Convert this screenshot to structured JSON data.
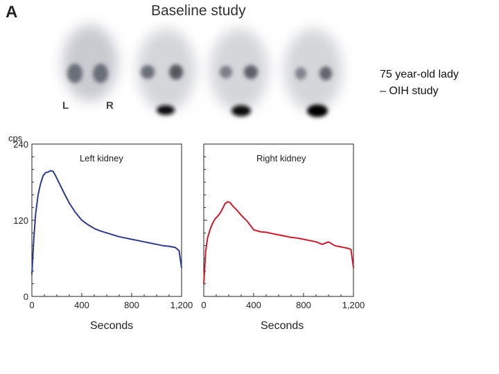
{
  "panel_label": "A",
  "title": "Baseline study",
  "scan_labels": {
    "left": "L",
    "right": "R"
  },
  "side_note": {
    "line1": "75 year-old lady",
    "line2": "– OIH study"
  },
  "colors": {
    "left_curve": "#2b3a8c",
    "right_curve": "#d0182a"
  },
  "chart_data": [
    {
      "type": "line",
      "title": "Left kidney",
      "ylabel": "cps",
      "xlabel": "Seconds",
      "xlim": [
        0,
        1200
      ],
      "ylim": [
        0,
        240
      ],
      "xticks": [
        "0",
        "400",
        "800",
        "1,200"
      ],
      "yticks": [
        "0",
        "120",
        "240"
      ],
      "x": [
        0,
        15,
        30,
        50,
        70,
        90,
        110,
        130,
        150,
        170,
        190,
        220,
        260,
        300,
        350,
        400,
        450,
        500,
        550,
        600,
        650,
        700,
        750,
        800,
        850,
        900,
        950,
        1000,
        1050,
        1100,
        1150,
        1180,
        1200
      ],
      "y": [
        35,
        90,
        130,
        160,
        178,
        190,
        195,
        196,
        198,
        197,
        190,
        178,
        162,
        147,
        132,
        120,
        113,
        107,
        103,
        100,
        97,
        94,
        92,
        90,
        88,
        86,
        84,
        82,
        80,
        79,
        77,
        72,
        45
      ]
    },
    {
      "type": "line",
      "title": "Right kidney",
      "ylabel": "",
      "xlabel": "Seconds",
      "xlim": [
        0,
        1200
      ],
      "ylim": [
        0,
        240
      ],
      "xticks": [
        "0",
        "400",
        "800",
        "1,200"
      ],
      "yticks": [],
      "x": [
        0,
        15,
        30,
        50,
        70,
        90,
        110,
        130,
        150,
        170,
        190,
        210,
        230,
        260,
        300,
        350,
        400,
        450,
        500,
        550,
        600,
        650,
        700,
        750,
        800,
        850,
        900,
        950,
        1000,
        1050,
        1100,
        1150,
        1180,
        1200
      ],
      "y": [
        20,
        70,
        92,
        105,
        115,
        122,
        126,
        131,
        138,
        146,
        149,
        148,
        143,
        137,
        128,
        118,
        105,
        102,
        101,
        99,
        97,
        95,
        93,
        92,
        90,
        88,
        86,
        82,
        86,
        80,
        78,
        76,
        74,
        45
      ]
    }
  ]
}
